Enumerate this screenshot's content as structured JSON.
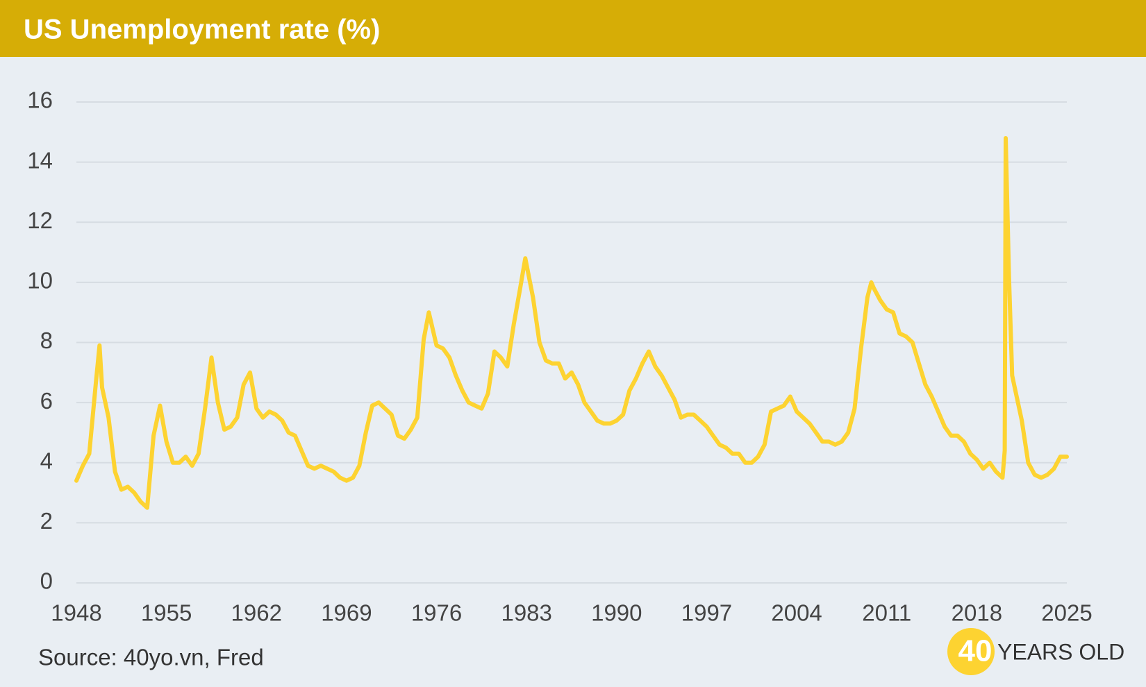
{
  "chart_data": {
    "type": "line",
    "title": "US Unemployment rate (%)",
    "x": [
      1948.0,
      1948.5,
      1949.0,
      1949.5,
      1949.8,
      1950.0,
      1950.5,
      1951.0,
      1951.5,
      1952.0,
      1952.5,
      1953.0,
      1953.5,
      1954.0,
      1954.5,
      1955.0,
      1955.5,
      1956.0,
      1956.5,
      1957.0,
      1957.5,
      1958.0,
      1958.5,
      1959.0,
      1959.5,
      1960.0,
      1960.5,
      1961.0,
      1961.5,
      1962.0,
      1962.5,
      1963.0,
      1963.5,
      1964.0,
      1964.5,
      1965.0,
      1965.5,
      1966.0,
      1966.5,
      1967.0,
      1967.5,
      1968.0,
      1968.5,
      1969.0,
      1969.5,
      1970.0,
      1970.5,
      1971.0,
      1971.5,
      1972.0,
      1972.5,
      1973.0,
      1973.5,
      1974.0,
      1974.5,
      1975.0,
      1975.4,
      1976.0,
      1976.5,
      1977.0,
      1977.5,
      1978.0,
      1978.5,
      1979.0,
      1979.5,
      1980.0,
      1980.5,
      1981.0,
      1981.5,
      1982.0,
      1982.5,
      1982.9,
      1983.5,
      1984.0,
      1984.5,
      1985.0,
      1985.5,
      1986.0,
      1986.5,
      1987.0,
      1987.5,
      1988.0,
      1988.5,
      1989.0,
      1989.5,
      1990.0,
      1990.5,
      1991.0,
      1991.5,
      1992.0,
      1992.5,
      1993.0,
      1993.5,
      1994.0,
      1994.5,
      1995.0,
      1995.5,
      1996.0,
      1996.5,
      1997.0,
      1997.5,
      1998.0,
      1998.5,
      1999.0,
      1999.5,
      2000.0,
      2000.5,
      2001.0,
      2001.5,
      2002.0,
      2002.5,
      2003.0,
      2003.5,
      2004.0,
      2004.5,
      2005.0,
      2005.5,
      2006.0,
      2006.5,
      2007.0,
      2007.5,
      2008.0,
      2008.5,
      2009.0,
      2009.5,
      2009.8,
      2010.0,
      2010.5,
      2011.0,
      2011.5,
      2012.0,
      2012.5,
      2013.0,
      2013.5,
      2014.0,
      2014.5,
      2015.0,
      2015.5,
      2016.0,
      2016.5,
      2017.0,
      2017.5,
      2018.0,
      2018.5,
      2019.0,
      2019.5,
      2020.0,
      2020.17,
      2020.25,
      2020.5,
      2020.75,
      2021.0,
      2021.5,
      2022.0,
      2022.5,
      2023.0,
      2023.5,
      2024.0,
      2024.5,
      2025.0
    ],
    "values": [
      3.4,
      3.9,
      4.3,
      6.6,
      7.9,
      6.5,
      5.5,
      3.7,
      3.1,
      3.2,
      3.0,
      2.7,
      2.5,
      4.9,
      5.9,
      4.7,
      4.0,
      4.0,
      4.2,
      3.9,
      4.3,
      5.8,
      7.5,
      6.0,
      5.1,
      5.2,
      5.5,
      6.6,
      7.0,
      5.8,
      5.5,
      5.7,
      5.6,
      5.4,
      5.0,
      4.9,
      4.4,
      3.9,
      3.8,
      3.9,
      3.8,
      3.7,
      3.5,
      3.4,
      3.5,
      3.9,
      5.0,
      5.9,
      6.0,
      5.8,
      5.6,
      4.9,
      4.8,
      5.1,
      5.5,
      8.1,
      9.0,
      7.9,
      7.8,
      7.5,
      6.9,
      6.4,
      6.0,
      5.9,
      5.8,
      6.3,
      7.7,
      7.5,
      7.2,
      8.6,
      9.8,
      10.8,
      9.5,
      8.0,
      7.4,
      7.3,
      7.3,
      6.8,
      7.0,
      6.6,
      6.0,
      5.7,
      5.4,
      5.3,
      5.3,
      5.4,
      5.6,
      6.4,
      6.8,
      7.3,
      7.7,
      7.2,
      6.9,
      6.5,
      6.1,
      5.5,
      5.6,
      5.6,
      5.4,
      5.2,
      4.9,
      4.6,
      4.5,
      4.3,
      4.3,
      4.0,
      4.0,
      4.2,
      4.6,
      5.7,
      5.8,
      5.9,
      6.2,
      5.7,
      5.5,
      5.3,
      5.0,
      4.7,
      4.7,
      4.6,
      4.7,
      5.0,
      5.8,
      7.8,
      9.5,
      10.0,
      9.8,
      9.4,
      9.1,
      9.0,
      8.3,
      8.2,
      8.0,
      7.3,
      6.6,
      6.2,
      5.7,
      5.2,
      4.9,
      4.9,
      4.7,
      4.3,
      4.1,
      3.8,
      4.0,
      3.7,
      3.5,
      4.4,
      14.8,
      10.2,
      6.9,
      6.4,
      5.4,
      4.0,
      3.6,
      3.5,
      3.6,
      3.8,
      4.2,
      4.2
    ],
    "color": "#fdd331",
    "xlim": [
      1948,
      2025
    ],
    "xticks": [
      1948,
      1955,
      1962,
      1969,
      1976,
      1983,
      1990,
      1997,
      2004,
      2011,
      2018,
      2025
    ],
    "ylim": [
      0,
      16
    ],
    "yticks": [
      0,
      2,
      4,
      6,
      8,
      10,
      12,
      14,
      16
    ],
    "grid": true,
    "source": "Source: 40yo.vn, Fred"
  },
  "logo": {
    "number": "40",
    "text": "YEARS OLD"
  }
}
